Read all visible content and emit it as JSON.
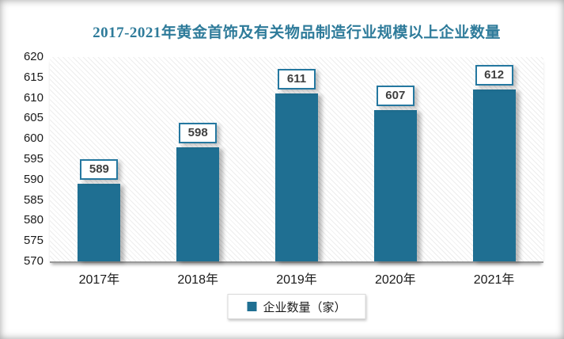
{
  "chart_data": {
    "type": "bar",
    "title": "2017-2021年黄金首饰及有关物品制造行业规模以上企业数量",
    "categories": [
      "2017年",
      "2018年",
      "2019年",
      "2020年",
      "2021年"
    ],
    "values": [
      589,
      598,
      611,
      607,
      612
    ],
    "series_name": "企业数量（家）",
    "ylim": [
      570,
      620
    ],
    "ytick_step": 5,
    "yticks": [
      620,
      615,
      610,
      605,
      600,
      595,
      590,
      585,
      580,
      575,
      570
    ],
    "grid": false,
    "legend_position": "bottom",
    "bar_color": "#1F6F92",
    "title_color": "#2E7B9A",
    "background_pattern": "diagonal-hatch"
  },
  "legend": {
    "label": "企业数量（家）"
  }
}
